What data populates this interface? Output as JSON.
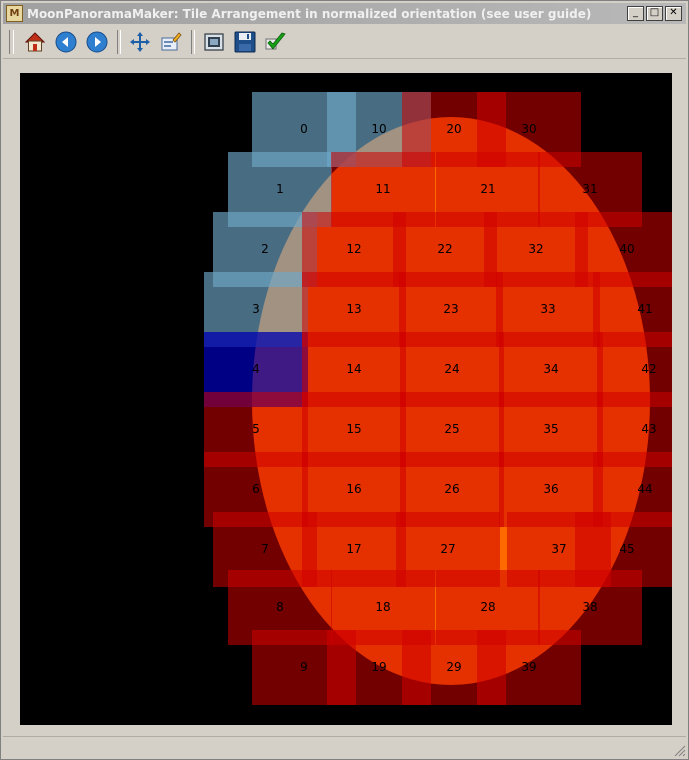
{
  "window": {
    "app_icon_glyph": "M",
    "title": "MoonPanoramaMaker: Tile Arrangement in normalized orientation (see user guide)",
    "minimize": "_",
    "maximize": "□",
    "close": "✕"
  },
  "toolbar": {
    "buttons": [
      {
        "name": "home-icon",
        "label": "Home"
      },
      {
        "name": "back-icon",
        "label": "Back"
      },
      {
        "name": "forward-icon",
        "label": "Forward"
      },
      {
        "name": "pan-icon",
        "label": "Pan"
      },
      {
        "name": "edit-icon",
        "label": "Edit"
      },
      {
        "name": "configure-icon",
        "label": "Configure"
      },
      {
        "name": "save-icon",
        "label": "Save"
      },
      {
        "name": "confirm-icon",
        "label": "Confirm"
      }
    ]
  },
  "plot": {
    "background": "#000000",
    "moon_color": "#ff6a00",
    "tile_color": "#d00000",
    "done_tile_color": "#6fa8c8",
    "active_tile_color": "#0000b0",
    "tiles": [
      {
        "label": "0",
        "status": "done"
      },
      {
        "label": "1",
        "status": "done"
      },
      {
        "label": "2",
        "status": "done"
      },
      {
        "label": "3",
        "status": "done"
      },
      {
        "label": "4",
        "status": "active"
      },
      {
        "label": "5",
        "status": "pending"
      },
      {
        "label": "6",
        "status": "pending"
      },
      {
        "label": "7",
        "status": "pending"
      },
      {
        "label": "8",
        "status": "pending"
      },
      {
        "label": "9",
        "status": "pending"
      },
      {
        "label": "10",
        "status": "done"
      },
      {
        "label": "11",
        "status": "pending"
      },
      {
        "label": "12",
        "status": "pending"
      },
      {
        "label": "13",
        "status": "pending"
      },
      {
        "label": "14",
        "status": "pending"
      },
      {
        "label": "15",
        "status": "pending"
      },
      {
        "label": "16",
        "status": "pending"
      },
      {
        "label": "17",
        "status": "pending"
      },
      {
        "label": "18",
        "status": "pending"
      },
      {
        "label": "19",
        "status": "pending"
      },
      {
        "label": "20",
        "status": "pending"
      },
      {
        "label": "21",
        "status": "pending"
      },
      {
        "label": "22",
        "status": "pending"
      },
      {
        "label": "23",
        "status": "pending"
      },
      {
        "label": "24",
        "status": "pending"
      },
      {
        "label": "25",
        "status": "pending"
      },
      {
        "label": "26",
        "status": "pending"
      },
      {
        "label": "27",
        "status": "pending"
      },
      {
        "label": "28",
        "status": "pending"
      },
      {
        "label": "29",
        "status": "pending"
      },
      {
        "label": "30",
        "status": "pending"
      },
      {
        "label": "31",
        "status": "pending"
      },
      {
        "label": "32",
        "status": "pending"
      },
      {
        "label": "33",
        "status": "pending"
      },
      {
        "label": "34",
        "status": "pending"
      },
      {
        "label": "35",
        "status": "pending"
      },
      {
        "label": "36",
        "status": "pending"
      },
      {
        "label": "37",
        "status": "pending"
      },
      {
        "label": "38",
        "status": "pending"
      },
      {
        "label": "39",
        "status": "pending"
      },
      {
        "label": "40",
        "status": "pending"
      },
      {
        "label": "41",
        "status": "pending"
      },
      {
        "label": "42",
        "status": "pending"
      },
      {
        "label": "43",
        "status": "pending"
      },
      {
        "label": "44",
        "status": "pending"
      },
      {
        "label": "45",
        "status": "pending"
      }
    ]
  }
}
